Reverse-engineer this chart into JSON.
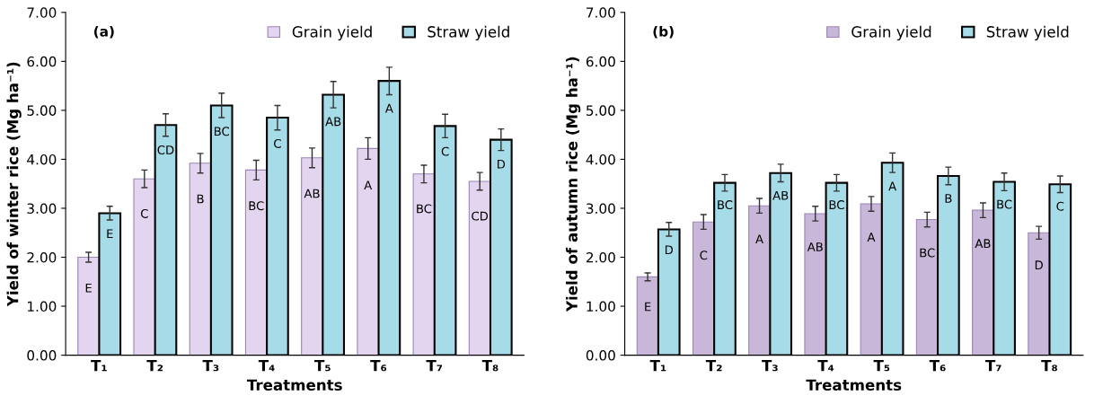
{
  "chart_data": [
    {
      "type": "bar",
      "title": "(a)",
      "xlabel": "Treatments",
      "ylabel": "Yield of winter rice (Mg ha⁻¹)",
      "categories": [
        "T₁",
        "T₂",
        "T₃",
        "T₄",
        "T₅",
        "T₆",
        "T₇",
        "T₈"
      ],
      "series": [
        {
          "name": "Grain yield",
          "color": "#e3d5ef",
          "values": [
            2.0,
            3.6,
            3.92,
            3.78,
            4.03,
            4.22,
            3.7,
            3.55
          ],
          "errors": [
            0.1,
            0.18,
            0.2,
            0.2,
            0.2,
            0.22,
            0.18,
            0.18
          ],
          "value_labels": [
            "E",
            "C",
            "B",
            "BC",
            "AB",
            "A",
            "BC",
            "CD"
          ]
        },
        {
          "name": "Straw yield",
          "color": "#a6dbe8",
          "values": [
            2.9,
            4.7,
            5.1,
            4.85,
            5.32,
            5.6,
            4.68,
            4.4
          ],
          "errors": [
            0.14,
            0.23,
            0.25,
            0.25,
            0.27,
            0.28,
            0.24,
            0.22
          ],
          "value_labels": [
            "E",
            "CD",
            "BC",
            "C",
            "AB",
            "A",
            "C",
            "D"
          ]
        }
      ],
      "ylim": [
        0,
        7
      ],
      "yticks": [
        {
          "value": 0,
          "label": "0.00"
        },
        {
          "value": 1,
          "label": "1.00"
        },
        {
          "value": 2,
          "label": "2.00"
        },
        {
          "value": 3,
          "label": "3.00"
        },
        {
          "value": 4,
          "label": "4.00"
        },
        {
          "value": 5,
          "label": "5.00"
        },
        {
          "value": 6,
          "label": "6.00"
        },
        {
          "value": 7,
          "label": "7.00"
        }
      ],
      "grid": false,
      "legend": "top right"
    },
    {
      "type": "bar",
      "title": "(b)",
      "xlabel": "Treatments",
      "ylabel": "Yield of autumn rice (Mg ha⁻¹)",
      "categories": [
        "T₁",
        "T₂",
        "T₃",
        "T₄",
        "T₅",
        "T₆",
        "T₇",
        "T₈"
      ],
      "series": [
        {
          "name": "Grain yield",
          "color": "#c8b7d8",
          "values": [
            1.6,
            2.72,
            3.05,
            2.89,
            3.09,
            2.77,
            2.96,
            2.5
          ],
          "errors": [
            0.08,
            0.15,
            0.15,
            0.15,
            0.15,
            0.15,
            0.15,
            0.13
          ],
          "value_labels": [
            "E",
            "C",
            "A",
            "AB",
            "A",
            "BC",
            "AB",
            "D"
          ]
        },
        {
          "name": "Straw yield",
          "color": "#a6dbe8",
          "values": [
            2.57,
            3.52,
            3.72,
            3.52,
            3.93,
            3.66,
            3.54,
            3.49
          ],
          "errors": [
            0.14,
            0.17,
            0.18,
            0.17,
            0.2,
            0.18,
            0.18,
            0.17
          ],
          "value_labels": [
            "D",
            "BC",
            "AB",
            "BC",
            "A",
            "B",
            "BC",
            "C"
          ]
        }
      ],
      "ylim": [
        0,
        7
      ],
      "yticks": [
        {
          "value": 0,
          "label": "0.00"
        },
        {
          "value": 1,
          "label": "1.00"
        },
        {
          "value": 2,
          "label": "2.00"
        },
        {
          "value": 3,
          "label": "3.00"
        },
        {
          "value": 4,
          "label": "4.00"
        },
        {
          "value": 5,
          "label": "5.00"
        },
        {
          "value": 6,
          "label": "6.00"
        },
        {
          "value": 7,
          "label": "7.00"
        }
      ],
      "grid": false,
      "legend": "top right"
    }
  ]
}
